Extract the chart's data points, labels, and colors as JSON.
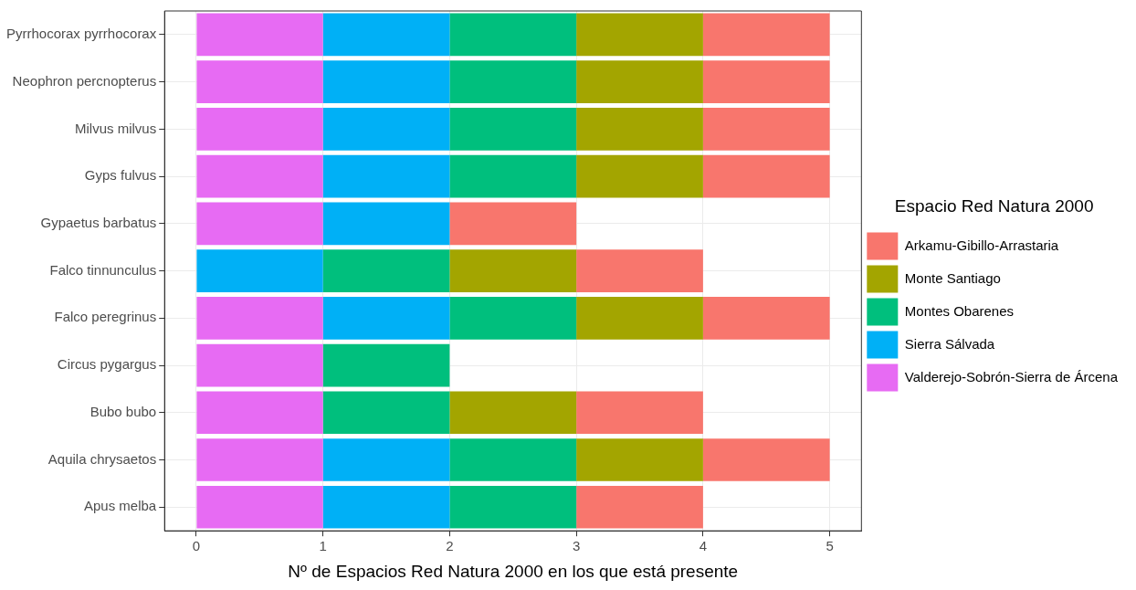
{
  "chart_data": {
    "type": "bar",
    "orientation": "horizontal",
    "stacked": true,
    "xlabel": "Nº de Espacios Red Natura 2000 en los que está presente",
    "legend_title": "Espacio Red Natura 2000",
    "legend": "right",
    "grid": true,
    "categories": [
      "Pyrrhocorax pyrrhocorax",
      "Neophron percnopterus",
      "Milvus milvus",
      "Gyps fulvus",
      "Gypaetus barbatus",
      "Falco tinnunculus",
      "Falco peregrinus",
      "Circus pygargus",
      "Bubo bubo",
      "Aquila chrysaetos",
      "Apus melba"
    ],
    "xlim": [
      -0.25,
      5.25
    ],
    "xticks": [
      0,
      1,
      2,
      3,
      4,
      5
    ],
    "series": [
      {
        "name": "Valderejo-Sobrón-Sierra de Árcena",
        "color": "#e76bf3",
        "values": [
          1,
          1,
          1,
          1,
          1,
          null,
          1,
          1,
          1,
          1,
          1
        ]
      },
      {
        "name": "Sierra Sálvada",
        "color": "#00b0f6",
        "values": [
          1,
          1,
          1,
          1,
          1,
          1,
          1,
          null,
          null,
          1,
          1
        ]
      },
      {
        "name": "Montes Obarenes",
        "color": "#00bf7d",
        "values": [
          1,
          1,
          1,
          1,
          null,
          1,
          1,
          1,
          1,
          1,
          1
        ]
      },
      {
        "name": "Monte Santiago",
        "color": "#a3a500",
        "values": [
          1,
          1,
          1,
          1,
          null,
          1,
          1,
          null,
          1,
          1,
          null
        ]
      },
      {
        "name": "Arkamu-Gibillo-Arrastaria",
        "color": "#f8766d",
        "values": [
          1,
          1,
          1,
          1,
          1,
          1,
          1,
          null,
          1,
          1,
          1
        ]
      }
    ]
  }
}
